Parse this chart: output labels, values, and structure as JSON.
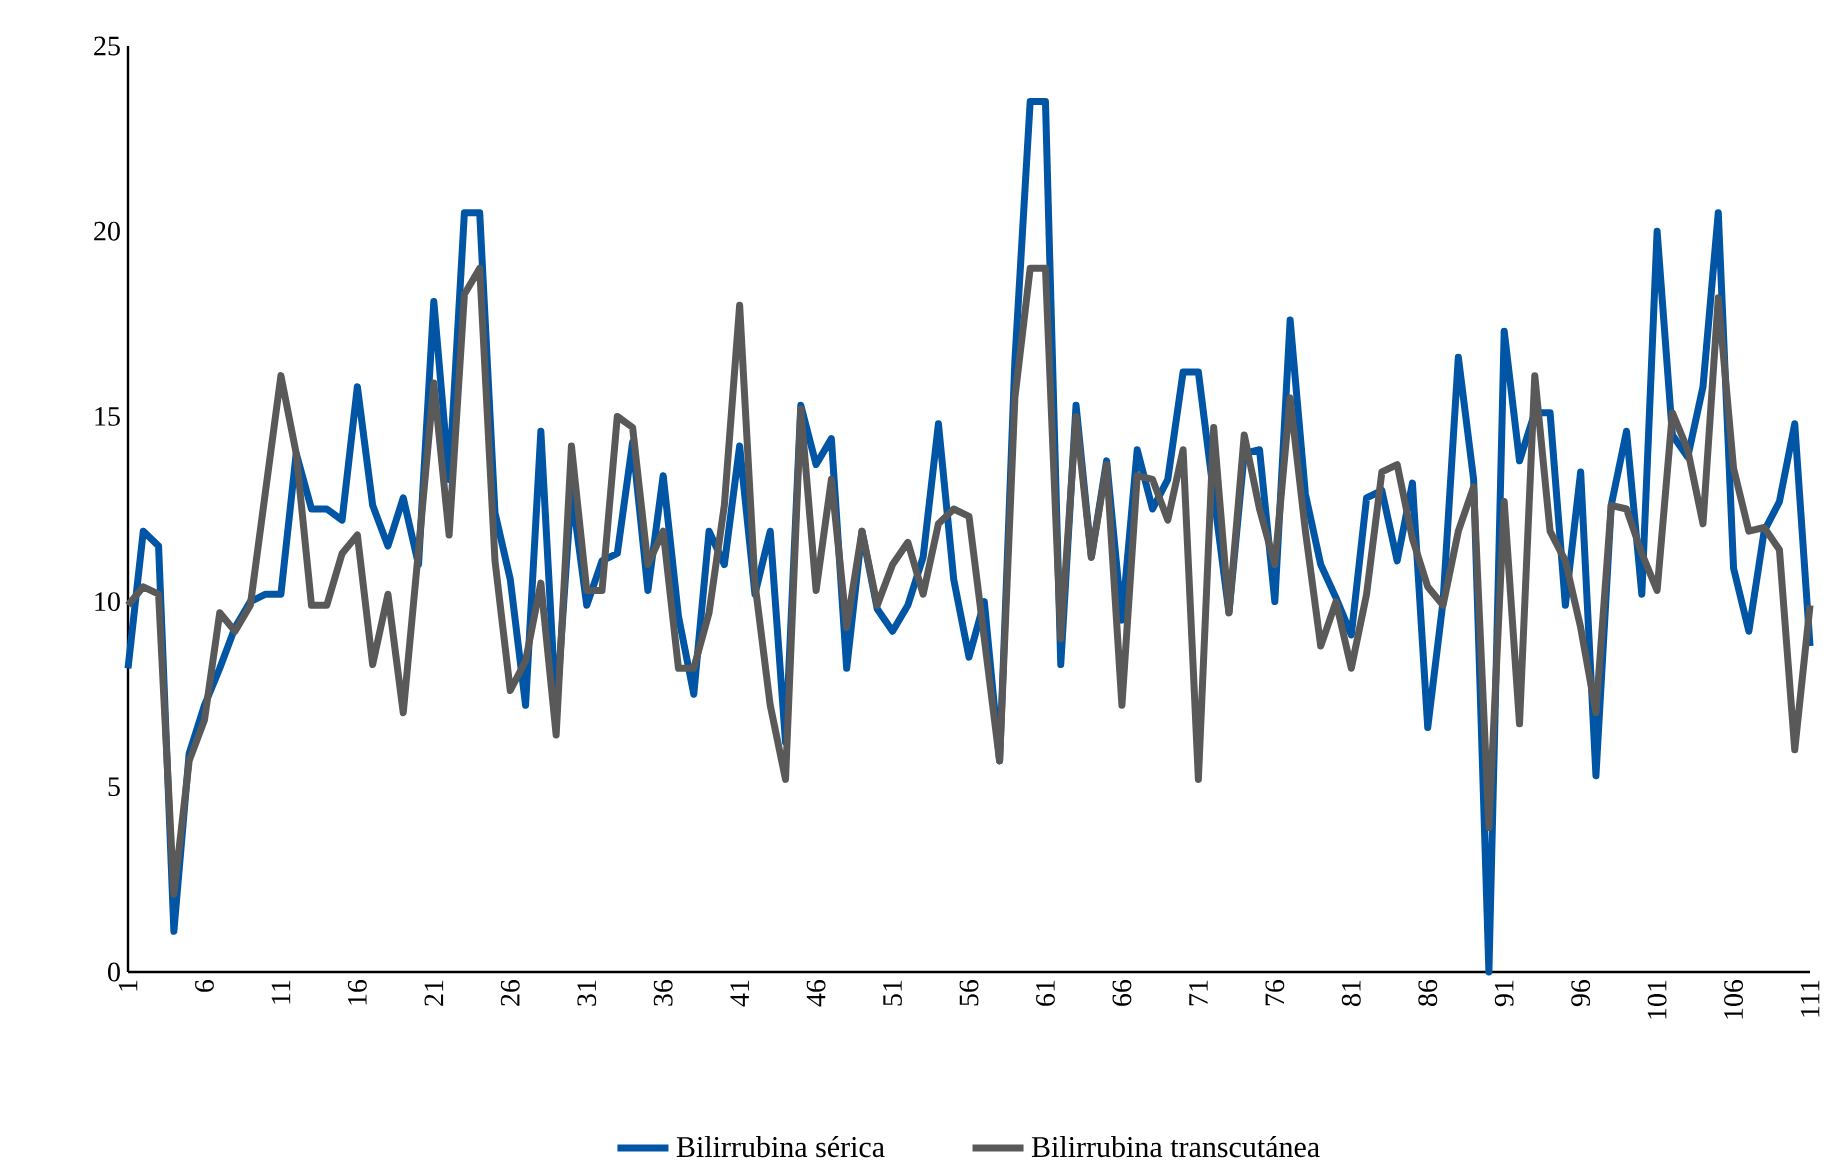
{
  "chart_data": {
    "type": "line",
    "x": [
      1,
      2,
      3,
      4,
      5,
      6,
      7,
      8,
      9,
      10,
      11,
      12,
      13,
      14,
      15,
      16,
      17,
      18,
      19,
      20,
      21,
      22,
      23,
      24,
      25,
      26,
      27,
      28,
      29,
      30,
      31,
      32,
      33,
      34,
      35,
      36,
      37,
      38,
      39,
      40,
      41,
      42,
      43,
      44,
      45,
      46,
      47,
      48,
      49,
      50,
      51,
      52,
      53,
      54,
      55,
      56,
      57,
      58,
      59,
      60,
      61,
      62,
      63,
      64,
      65,
      66,
      67,
      68,
      69,
      70,
      71,
      72,
      73,
      74,
      75,
      76,
      77,
      78,
      79,
      80,
      81,
      82,
      83,
      84,
      85,
      86,
      87,
      88,
      89,
      90,
      91,
      92,
      93,
      94,
      95,
      96,
      97,
      98,
      99,
      100,
      101,
      102,
      103,
      104,
      105,
      106,
      107,
      108,
      109,
      110,
      111
    ],
    "series": [
      {
        "name": "Bilirrubina sérica",
        "color": "#0055a4",
        "values": [
          8.2,
          11.9,
          11.5,
          1.1,
          5.9,
          7.2,
          8.2,
          9.3,
          10.0,
          10.2,
          10.2,
          14.0,
          12.5,
          12.5,
          12.2,
          15.8,
          12.6,
          11.5,
          12.8,
          11.0,
          18.1,
          13.3,
          20.5,
          20.5,
          12.4,
          10.6,
          7.2,
          14.6,
          7.0,
          13.0,
          9.9,
          11.1,
          11.3,
          14.3,
          10.3,
          13.4,
          9.6,
          7.5,
          11.9,
          11.0,
          14.2,
          10.2,
          11.9,
          6.2,
          15.3,
          13.7,
          14.4,
          8.2,
          11.9,
          9.8,
          9.2,
          9.9,
          11.2,
          14.8,
          10.6,
          8.5,
          10.0,
          5.7,
          16.5,
          23.5,
          23.5,
          8.3,
          15.3,
          11.2,
          13.8,
          9.5,
          14.1,
          12.5,
          13.3,
          16.2,
          16.2,
          12.9,
          9.7,
          14.0,
          14.1,
          10.0,
          17.6,
          12.9,
          11.0,
          10.1,
          9.1,
          12.8,
          13.0,
          11.1,
          13.2,
          6.6,
          10.0,
          16.6,
          13.3,
          0,
          17.3,
          13.8,
          15.1,
          15.1,
          9.9,
          13.5,
          5.3,
          12.6,
          14.6,
          10.2,
          20.0,
          14.5,
          13.9,
          15.8,
          20.5,
          10.9,
          9.2,
          11.9,
          12.7,
          14.8,
          8.8
        ]
      },
      {
        "name": "Bilirrubina transcutánea",
        "color": "#595959",
        "values": [
          9.9,
          10.4,
          10.2,
          2.1,
          5.7,
          6.8,
          9.7,
          9.2,
          9.9,
          13.0,
          16.1,
          14.0,
          9.9,
          9.9,
          11.3,
          11.8,
          8.3,
          10.2,
          7.0,
          11.4,
          15.9,
          11.8,
          18.3,
          19.0,
          11.1,
          7.6,
          8.4,
          10.5,
          6.4,
          14.2,
          10.3,
          10.3,
          15.0,
          14.7,
          11.0,
          11.9,
          8.2,
          8.2,
          9.7,
          12.6,
          18.0,
          10.5,
          7.2,
          5.2,
          15.2,
          10.3,
          13.3,
          9.3,
          11.9,
          9.9,
          11.0,
          11.6,
          10.2,
          12.1,
          12.5,
          12.3,
          9.0,
          5.7,
          15.5,
          19.0,
          19.0,
          9.0,
          15.0,
          11.2,
          13.7,
          7.2,
          13.4,
          13.3,
          12.2,
          14.1,
          5.2,
          14.7,
          9.7,
          14.5,
          12.5,
          11.0,
          15.5,
          11.9,
          8.8,
          10.0,
          8.2,
          10.2,
          13.5,
          13.7,
          11.7,
          10.4,
          9.9,
          11.9,
          13.1,
          3.9,
          12.7,
          6.7,
          16.1,
          11.9,
          11.1,
          9.3,
          7.0,
          12.6,
          12.5,
          11.3,
          10.3,
          15.1,
          14.1,
          12.1,
          18.2,
          13.6,
          11.9,
          12.0,
          11.4,
          6.0,
          9.9
        ]
      }
    ],
    "xlim": [
      1,
      111
    ],
    "xticks": [
      1,
      6,
      11,
      16,
      21,
      26,
      31,
      36,
      41,
      46,
      51,
      56,
      61,
      66,
      71,
      76,
      81,
      86,
      91,
      96,
      101,
      106,
      111
    ],
    "ylim": [
      0,
      25
    ],
    "yticks": [
      0,
      5,
      10,
      15,
      20,
      25
    ],
    "legend": "bottom",
    "line_style": "solid"
  }
}
